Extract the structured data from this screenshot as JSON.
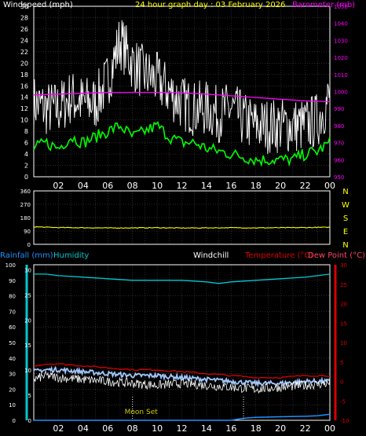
{
  "header": {
    "windspeed_label": "Windspeed (mph)",
    "title": "24 hour graph day : 03 February 2026",
    "barometer_label": "Barometer (mb)",
    "rainfall_label": "Rainfall (mm)",
    "humidity_label": "Humidity",
    "windchill_label": "Windchill",
    "temperature_label": "Temperature (°C)",
    "dewpoint_label": "Dew Point (°C)",
    "moon_set_label": "Moon Set"
  },
  "colors": {
    "background": "#000000",
    "frame": "#ffffff",
    "title": "#ffff00",
    "windspeed_label": "#ffffff",
    "barometer": "#ff00ff",
    "wind_gust": "#ffffff",
    "wind_avg": "#00ff00",
    "wind_direction": "#ffff00",
    "rainfall": "#1e90ff",
    "humidity": "#00c8d0",
    "windchill": "#ffffff",
    "temperature": "#dd0000",
    "dewpoint": "#a0c8ff",
    "axis_text": "#ffffff",
    "dir_labels": "#ffff00",
    "moon": "#cccc00"
  },
  "chart_data": [
    {
      "type": "line",
      "id": "wind",
      "x_hour_ticks": [
        "02",
        "04",
        "06",
        "08",
        "10",
        "12",
        "14",
        "16",
        "18",
        "20",
        "22",
        "00"
      ],
      "ylim": [
        0,
        30
      ],
      "y_ticks": [
        0,
        2,
        4,
        6,
        8,
        10,
        12,
        14,
        16,
        18,
        20,
        22,
        24,
        26,
        28,
        30
      ],
      "y2lim": [
        950,
        1050
      ],
      "y2_ticks": [
        950,
        960,
        970,
        980,
        990,
        1000,
        1010,
        1020,
        1030,
        1040,
        1050
      ],
      "grid": true,
      "series": [
        {
          "name": "Windspeed (mph)",
          "role": "gust",
          "axis": "left",
          "x": [
            0,
            1,
            2,
            3,
            4,
            5,
            6,
            7,
            8,
            9,
            10,
            11,
            12,
            13,
            14,
            15,
            16,
            17,
            18,
            19,
            20,
            21,
            22,
            23,
            24
          ],
          "values": [
            13,
            12,
            12,
            14,
            13,
            13,
            17,
            24,
            20,
            18,
            17,
            15,
            13,
            12,
            12,
            11,
            12,
            10,
            9,
            9,
            9,
            9,
            9,
            10,
            14
          ]
        },
        {
          "name": "Windspeed (mph)",
          "role": "average",
          "axis": "left",
          "x": [
            0,
            1,
            2,
            3,
            4,
            5,
            6,
            7,
            8,
            9,
            10,
            11,
            12,
            13,
            14,
            15,
            16,
            17,
            18,
            19,
            20,
            21,
            22,
            23,
            24
          ],
          "values": [
            5,
            6,
            5,
            7,
            6,
            7,
            8,
            9,
            7,
            8,
            9,
            7,
            6,
            6,
            5,
            4.5,
            4,
            3.5,
            3,
            3,
            3,
            3,
            4,
            4.5,
            6
          ]
        },
        {
          "name": "Barometer (mb)",
          "axis": "right",
          "x": [
            0,
            2,
            4,
            6,
            8,
            10,
            12,
            14,
            16,
            18,
            20,
            22,
            24
          ],
          "values": [
            998,
            998.5,
            999,
            999.4,
            999.5,
            999.5,
            999.2,
            998.5,
            997.5,
            996.5,
            995.5,
            994.5,
            994
          ]
        }
      ]
    },
    {
      "type": "line",
      "id": "wind_direction",
      "ylim": [
        0,
        360
      ],
      "y_ticks": [
        0,
        90,
        180,
        270,
        360
      ],
      "dir_labels": [
        "N",
        "W",
        "S",
        "E",
        "N"
      ],
      "grid": true,
      "series": [
        {
          "name": "Wind direction",
          "x": [
            0,
            2,
            4,
            6,
            8,
            10,
            12,
            14,
            16,
            18,
            20,
            22,
            24
          ],
          "values": [
            118,
            113,
            112,
            110,
            111,
            112,
            110,
            111,
            112,
            111,
            112,
            113,
            115
          ]
        }
      ]
    },
    {
      "type": "line",
      "id": "temp_hum",
      "x_hour_ticks": [
        "02",
        "04",
        "06",
        "08",
        "10",
        "12",
        "14",
        "16",
        "18",
        "20",
        "22",
        "00"
      ],
      "ylim": [
        0,
        100
      ],
      "y_ticks": [
        0,
        10,
        20,
        30,
        40,
        50,
        60,
        70,
        80,
        90,
        100
      ],
      "y_ticks_rain": [
        0,
        5,
        10,
        15,
        20,
        25,
        30
      ],
      "y2lim": [
        -10,
        30
      ],
      "y2_ticks": [
        -10,
        -5,
        0,
        5,
        10,
        15,
        20,
        25,
        30
      ],
      "grid": true,
      "series": [
        {
          "name": "Humidity",
          "axis": "left",
          "x": [
            0,
            1,
            2,
            4,
            6,
            8,
            10,
            12,
            14,
            15,
            16,
            18,
            20,
            22,
            23,
            24
          ],
          "values": [
            94,
            94,
            93,
            92,
            91,
            90,
            90,
            90,
            89,
            88,
            89,
            90,
            91,
            92,
            93,
            94
          ]
        },
        {
          "name": "Temperature (°C)",
          "axis": "right",
          "x": [
            0,
            1,
            2,
            4,
            6,
            8,
            10,
            12,
            14,
            16,
            18,
            20,
            22,
            24
          ],
          "values": [
            4,
            4.5,
            4.5,
            4,
            3.5,
            3,
            3,
            2.5,
            2,
            1.5,
            1,
            1,
            1.5,
            1.5
          ]
        },
        {
          "name": "Dew Point (°C)",
          "axis": "right",
          "x": [
            0,
            1,
            2,
            4,
            6,
            8,
            10,
            12,
            14,
            16,
            18,
            20,
            22,
            24
          ],
          "values": [
            2.5,
            3,
            3,
            2.5,
            2,
            1.5,
            1.5,
            1,
            0.5,
            0,
            -0.5,
            -0.5,
            0,
            0
          ]
        },
        {
          "name": "Windchill",
          "axis": "right",
          "x": [
            0,
            1,
            2,
            4,
            6,
            8,
            10,
            12,
            14,
            16,
            18,
            20,
            22,
            24
          ],
          "values": [
            0.5,
            1.5,
            1,
            0.5,
            0,
            -0.5,
            -1,
            -0.5,
            -1,
            -1.5,
            -2,
            -1.5,
            -1,
            -0.5
          ]
        },
        {
          "name": "Rainfall (mm)",
          "axis": "rain",
          "x": [
            0,
            2,
            4,
            6,
            8,
            10,
            12,
            14,
            16,
            17,
            18,
            20,
            22,
            23,
            24
          ],
          "values": [
            0,
            0,
            0,
            0,
            0,
            0,
            0,
            0,
            0,
            0.4,
            0.6,
            0.7,
            0.8,
            0.9,
            1.2
          ]
        }
      ],
      "events": [
        {
          "label": "Moon Set",
          "hour": 8
        },
        {
          "label": "",
          "hour": 17
        }
      ]
    }
  ]
}
